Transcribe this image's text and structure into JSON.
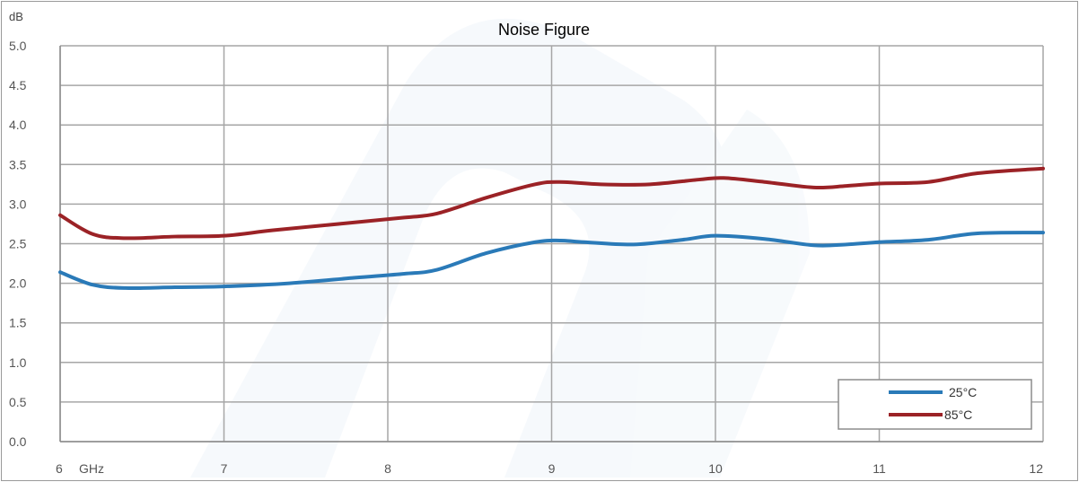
{
  "chart_data": {
    "type": "line",
    "title": "Noise Figure",
    "ylabel": "dB",
    "xlabel": "GHz",
    "xlim": [
      6,
      12
    ],
    "ylim": [
      0,
      5
    ],
    "x_ticks": [
      "6",
      "7",
      "8",
      "9",
      "10",
      "11",
      "12"
    ],
    "y_ticks": [
      "0.0",
      "0.5",
      "1.0",
      "1.5",
      "2.0",
      "2.5",
      "3.0",
      "3.5",
      "4.0",
      "4.5",
      "5.0"
    ],
    "grid": true,
    "legend_position": "bottom-right",
    "series": [
      {
        "name": "25°C",
        "color": "#2a7ab8",
        "x": [
          6.0,
          6.2,
          6.4,
          6.7,
          7.0,
          7.4,
          7.8,
          8.1,
          8.3,
          8.6,
          8.9,
          9.05,
          9.2,
          9.5,
          9.8,
          10.0,
          10.3,
          10.6,
          10.8,
          11.0,
          11.3,
          11.6,
          12.0
        ],
        "values": [
          2.14,
          1.98,
          1.94,
          1.95,
          1.96,
          2.0,
          2.07,
          2.12,
          2.17,
          2.38,
          2.52,
          2.54,
          2.52,
          2.49,
          2.55,
          2.6,
          2.56,
          2.48,
          2.49,
          2.52,
          2.55,
          2.63,
          2.64
        ]
      },
      {
        "name": "85°C",
        "color": "#9b2226",
        "x": [
          6.0,
          6.2,
          6.4,
          6.7,
          7.0,
          7.3,
          7.7,
          8.1,
          8.3,
          8.6,
          8.9,
          9.05,
          9.3,
          9.6,
          9.9,
          10.05,
          10.3,
          10.6,
          10.8,
          11.0,
          11.3,
          11.6,
          12.0
        ],
        "values": [
          2.86,
          2.62,
          2.57,
          2.59,
          2.6,
          2.67,
          2.75,
          2.83,
          2.88,
          3.08,
          3.25,
          3.28,
          3.25,
          3.25,
          3.31,
          3.33,
          3.28,
          3.21,
          3.23,
          3.26,
          3.28,
          3.39,
          3.45
        ]
      }
    ]
  }
}
